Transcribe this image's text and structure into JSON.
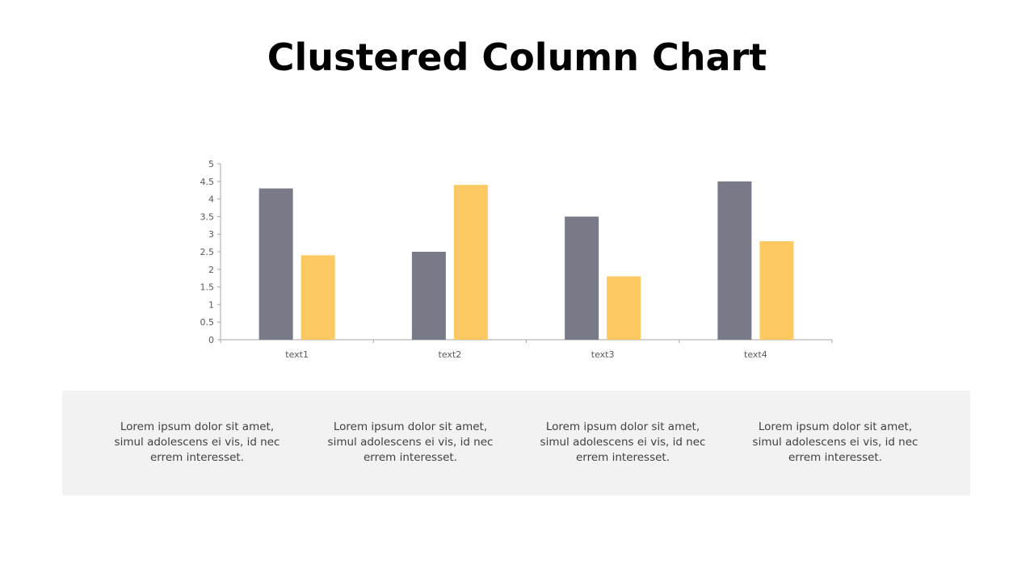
{
  "title": "Clustered Column Chart",
  "colors": {
    "series_1": "#787b87",
    "series_2": "#fec960",
    "axis": "#a6a6a6",
    "panel_bg": "#f2f2f2"
  },
  "chart_data": {
    "type": "bar",
    "categories": [
      "text1",
      "text2",
      "text3",
      "text4"
    ],
    "series": [
      {
        "values": [
          4.3,
          2.5,
          3.5,
          4.5
        ],
        "color": "#787b87"
      },
      {
        "values": [
          2.4,
          4.4,
          1.8,
          2.8
        ],
        "color": "#fec960"
      }
    ],
    "ylim": [
      0,
      5
    ],
    "yticks": [
      "0",
      "0.5",
      "1",
      "1.5",
      "2",
      "2.5",
      "3",
      "3.5",
      "4",
      "4.5",
      "5"
    ],
    "grid": false,
    "legend": "none"
  },
  "descriptions": [
    {
      "text": "Lorem ipsum dolor sit amet, simul adolescens ei vis, id nec errem interesset."
    },
    {
      "text": "Lorem ipsum dolor sit amet, simul adolescens ei vis, id nec errem interesset."
    },
    {
      "text": "Lorem ipsum dolor sit amet, simul adolescens ei vis, id nec errem interesset."
    },
    {
      "text": "Lorem ipsum dolor sit amet, simul adolescens ei vis, id nec errem interesset."
    }
  ]
}
